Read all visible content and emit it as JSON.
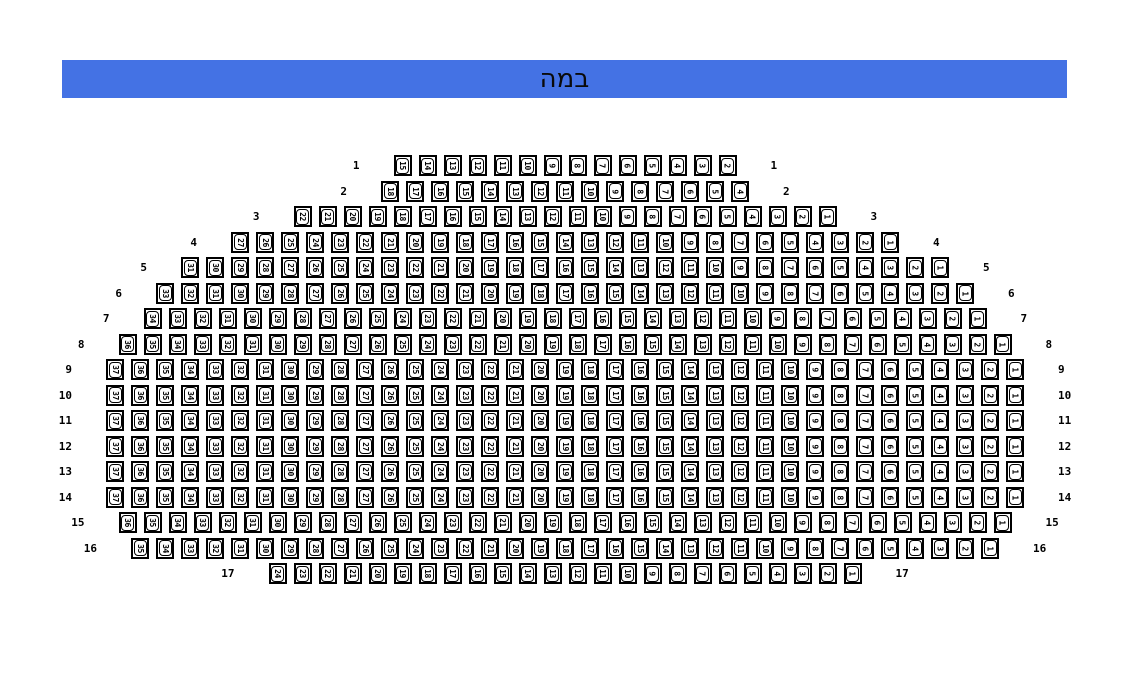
{
  "stage": {
    "label": "במה"
  },
  "colors": {
    "stage_banner": "#4472e4",
    "stage_text": "#0a0a0a",
    "seat_border": "#000000",
    "seat_fill": "#ffffff"
  },
  "seat_map": {
    "rows": [
      {
        "label": "1",
        "seats": [
          15,
          14,
          13,
          12,
          11,
          10,
          9,
          8,
          7,
          6,
          5,
          4,
          3,
          2
        ]
      },
      {
        "label": "2",
        "seats": [
          18,
          17,
          16,
          15,
          14,
          13,
          12,
          11,
          10,
          9,
          8,
          7,
          6,
          5,
          4
        ]
      },
      {
        "label": "3",
        "seats": [
          22,
          21,
          20,
          19,
          18,
          17,
          16,
          15,
          14,
          13,
          12,
          11,
          10,
          9,
          8,
          7,
          6,
          5,
          4,
          3,
          2,
          1
        ]
      },
      {
        "label": "4",
        "seats": [
          27,
          26,
          25,
          24,
          23,
          22,
          21,
          20,
          19,
          18,
          17,
          16,
          15,
          14,
          13,
          12,
          11,
          10,
          9,
          8,
          7,
          6,
          5,
          4,
          3,
          2,
          1
        ]
      },
      {
        "label": "5",
        "seats": [
          31,
          30,
          29,
          28,
          27,
          26,
          25,
          24,
          23,
          22,
          21,
          20,
          19,
          18,
          17,
          16,
          15,
          14,
          13,
          12,
          11,
          10,
          9,
          8,
          7,
          6,
          5,
          4,
          3,
          2,
          1
        ]
      },
      {
        "label": "6",
        "seats": [
          33,
          32,
          31,
          30,
          29,
          28,
          27,
          26,
          25,
          24,
          23,
          22,
          21,
          20,
          19,
          18,
          17,
          16,
          15,
          14,
          13,
          12,
          11,
          10,
          9,
          8,
          7,
          6,
          5,
          4,
          3,
          2,
          1
        ]
      },
      {
        "label": "7",
        "seats": [
          34,
          33,
          32,
          31,
          30,
          29,
          28,
          27,
          26,
          25,
          24,
          23,
          22,
          21,
          20,
          19,
          18,
          17,
          16,
          15,
          14,
          13,
          12,
          11,
          10,
          9,
          8,
          7,
          6,
          5,
          4,
          3,
          2,
          1
        ]
      },
      {
        "label": "8",
        "seats": [
          36,
          35,
          34,
          33,
          32,
          31,
          30,
          29,
          28,
          27,
          26,
          25,
          24,
          23,
          22,
          21,
          20,
          19,
          18,
          17,
          16,
          15,
          14,
          13,
          12,
          11,
          10,
          9,
          8,
          7,
          6,
          5,
          4,
          3,
          2,
          1
        ]
      },
      {
        "label": "9",
        "seats": [
          37,
          36,
          35,
          34,
          33,
          32,
          31,
          30,
          29,
          28,
          27,
          26,
          25,
          24,
          23,
          22,
          21,
          20,
          19,
          18,
          17,
          16,
          15,
          14,
          13,
          12,
          11,
          10,
          9,
          8,
          7,
          6,
          5,
          4,
          3,
          2,
          1
        ]
      },
      {
        "label": "10",
        "seats": [
          37,
          36,
          35,
          34,
          33,
          32,
          31,
          30,
          29,
          28,
          27,
          26,
          25,
          24,
          23,
          22,
          21,
          20,
          19,
          18,
          17,
          16,
          15,
          14,
          13,
          12,
          11,
          10,
          9,
          8,
          7,
          6,
          5,
          4,
          3,
          2,
          1
        ]
      },
      {
        "label": "11",
        "seats": [
          37,
          36,
          35,
          34,
          33,
          32,
          31,
          30,
          29,
          28,
          27,
          26,
          25,
          24,
          23,
          22,
          21,
          20,
          19,
          18,
          17,
          16,
          15,
          14,
          13,
          12,
          11,
          10,
          9,
          8,
          7,
          6,
          5,
          4,
          3,
          2,
          1
        ]
      },
      {
        "label": "12",
        "seats": [
          37,
          36,
          35,
          34,
          33,
          32,
          31,
          30,
          29,
          28,
          27,
          26,
          25,
          24,
          23,
          22,
          21,
          20,
          19,
          18,
          17,
          16,
          15,
          14,
          13,
          12,
          11,
          10,
          9,
          8,
          7,
          6,
          5,
          4,
          3,
          2,
          1
        ]
      },
      {
        "label": "13",
        "seats": [
          37,
          36,
          35,
          34,
          33,
          32,
          31,
          30,
          29,
          28,
          27,
          26,
          25,
          24,
          23,
          22,
          21,
          20,
          19,
          18,
          17,
          16,
          15,
          14,
          13,
          12,
          11,
          10,
          9,
          8,
          7,
          6,
          5,
          4,
          3,
          2,
          1
        ]
      },
      {
        "label": "14",
        "seats": [
          37,
          36,
          35,
          34,
          33,
          32,
          31,
          30,
          29,
          28,
          27,
          26,
          25,
          24,
          23,
          22,
          21,
          20,
          19,
          18,
          17,
          16,
          15,
          14,
          13,
          12,
          11,
          10,
          9,
          8,
          7,
          6,
          5,
          4,
          3,
          2,
          1
        ]
      },
      {
        "label": "15",
        "seats": [
          36,
          35,
          34,
          33,
          32,
          31,
          30,
          29,
          28,
          27,
          26,
          25,
          24,
          23,
          22,
          21,
          20,
          19,
          18,
          17,
          16,
          15,
          14,
          13,
          12,
          11,
          10,
          9,
          8,
          7,
          6,
          5,
          4,
          3,
          2,
          1
        ]
      },
      {
        "label": "16",
        "seats": [
          35,
          34,
          33,
          32,
          31,
          30,
          29,
          28,
          27,
          26,
          25,
          24,
          23,
          22,
          21,
          20,
          19,
          18,
          17,
          16,
          15,
          14,
          13,
          12,
          11,
          10,
          9,
          8,
          7,
          6,
          5,
          4,
          3,
          2,
          1
        ]
      },
      {
        "label": "17",
        "seats": [
          24,
          23,
          22,
          21,
          20,
          19,
          18,
          17,
          16,
          15,
          14,
          13,
          12,
          11,
          10,
          9,
          8,
          7,
          6,
          5,
          4,
          3,
          2,
          1
        ]
      }
    ]
  }
}
